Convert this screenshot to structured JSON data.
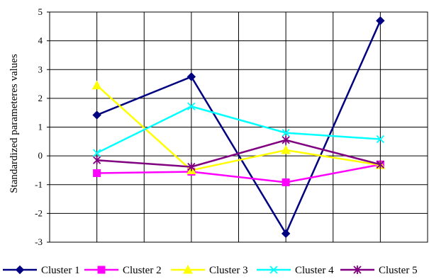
{
  "chart_data": {
    "type": "line",
    "categories": [
      "",
      "",
      "",
      ""
    ],
    "ylabel": "Standardized parameteres values",
    "ylim": [
      -3,
      5
    ],
    "yticks": [
      5,
      4,
      3,
      2,
      1,
      0,
      -1,
      -2,
      -3
    ],
    "grid": true,
    "legend_position": "bottom",
    "series": [
      {
        "name": "Cluster 1",
        "color": "#000080",
        "marker": "diamond",
        "values": [
          1.42,
          2.75,
          -2.7,
          4.7
        ]
      },
      {
        "name": "Cluster 2",
        "color": "#FF00FF",
        "marker": "square",
        "values": [
          -0.6,
          -0.55,
          -0.92,
          -0.3
        ]
      },
      {
        "name": "Cluster 3",
        "color": "#FFFF00",
        "marker": "triangle",
        "values": [
          2.45,
          -0.5,
          0.2,
          -0.32
        ]
      },
      {
        "name": "Cluster 4",
        "color": "#00FFFF",
        "marker": "x",
        "values": [
          0.1,
          1.72,
          0.8,
          0.58
        ]
      },
      {
        "name": "Cluster 5",
        "color": "#800080",
        "marker": "asterisk",
        "values": [
          -0.15,
          -0.38,
          0.55,
          -0.3
        ]
      }
    ]
  }
}
